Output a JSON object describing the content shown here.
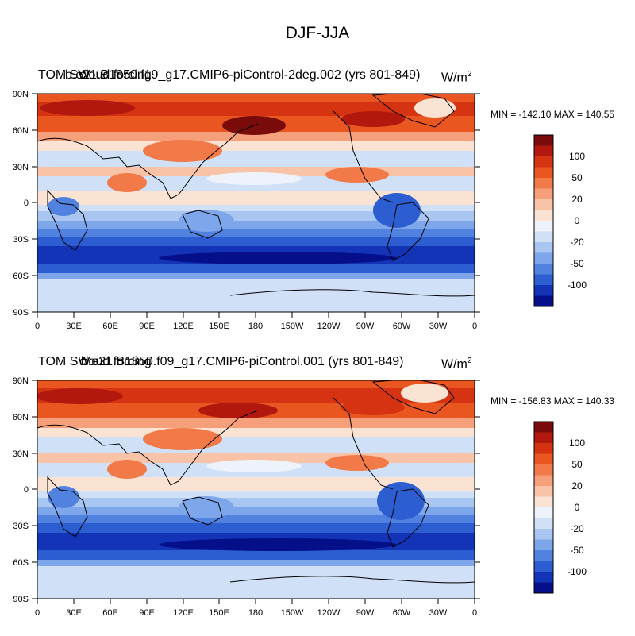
{
  "title": "DJF-JJA",
  "units_label": "W/m",
  "units_sup": "2",
  "axes": {
    "lat_labels": [
      "90N",
      "60N",
      "30N",
      "0",
      "30S",
      "60S",
      "90S"
    ],
    "lon_labels": [
      "0",
      "30E",
      "60E",
      "90E",
      "120E",
      "150E",
      "180",
      "150W",
      "120W",
      "90W",
      "60W",
      "30W",
      "0"
    ]
  },
  "colorbar": {
    "labels": [
      "100",
      "50",
      "20",
      "0",
      "-20",
      "-50",
      "-100"
    ],
    "colors": [
      "#7a0b0b",
      "#b2180e",
      "#d53312",
      "#ea5620",
      "#f27a49",
      "#f6a07b",
      "#f9c3a8",
      "#fbe3d3",
      "#eef3fb",
      "#cfe0f7",
      "#a9c6f2",
      "#7ea6ea",
      "#5282e0",
      "#2c5ed1",
      "#1434b8",
      "#050f8a"
    ]
  },
  "panels": [
    {
      "variable": "TOM SW",
      "case": "b.e21.B1850.f19_g17.CMIP6-piControl-2deg.002 (yrs 801-849)",
      "case_overprint": "cloud forcing",
      "min_max": "MIN = -142.10 MAX = 140.55"
    },
    {
      "variable": "TOM SW",
      "case": "b.e21.B1850.f09_g17.CMIP6-piControl.001 (yrs 801-849)",
      "case_overprint": "cloud forcing",
      "min_max": "MIN = -156.83 MAX = 140.33"
    }
  ]
}
